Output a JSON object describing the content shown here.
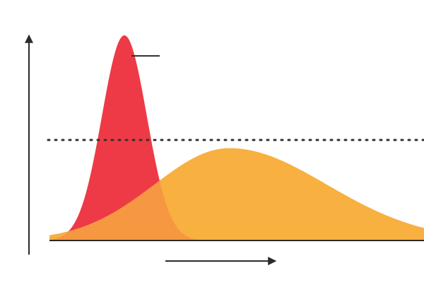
{
  "chart_data": {
    "type": "area",
    "title": "",
    "xlabel": "",
    "ylabel": "",
    "x_axis_arrow": true,
    "y_axis_arrow": true,
    "grid": false,
    "legend": "none",
    "xlim": [
      0,
      100
    ],
    "ylim": [
      0,
      100
    ],
    "threshold": {
      "y": 49,
      "style": "dotted",
      "color": "#333333"
    },
    "peak_marker": {
      "series": 0,
      "style": "short horizontal line",
      "color": "#333333"
    },
    "series": [
      {
        "id": "tall-peak-curve",
        "color": "#ee3a46",
        "opacity": 1.0,
        "peak_x": 20,
        "peak_y": 100,
        "left_width": 6,
        "right_width": 6,
        "x_start": 0,
        "x_end": 40
      },
      {
        "id": "flat-wide-curve",
        "color": "#f8b040",
        "opacity": 0.8,
        "peak_x": 48,
        "peak_y": 45,
        "left_width": 20,
        "right_width": 26,
        "x_start": 0,
        "x_end": 100
      }
    ]
  }
}
